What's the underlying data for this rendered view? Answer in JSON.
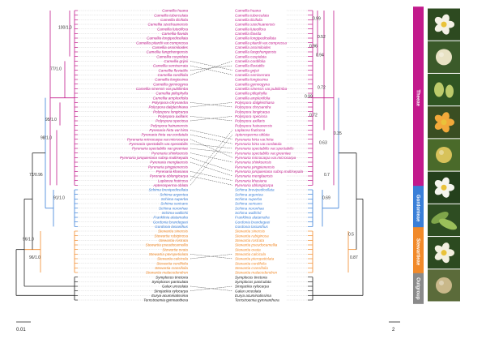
{
  "colors": {
    "Theeae": "#c21a8c",
    "Gordonieae": "#3a7fd8",
    "Stewartieae": "#f18a2a",
    "Outgroup": "#222222",
    "OutgroupBand": "#8a8a8a"
  },
  "left_tree": {
    "scale_label": "0.01",
    "taxa": [
      {
        "name": "Camellia huana",
        "clade": "Theeae"
      },
      {
        "name": "Camellia tuberculata",
        "clade": "Theeae"
      },
      {
        "name": "Camellia ilicifolia",
        "clade": "Theeae"
      },
      {
        "name": "Camellia szechuanensis",
        "clade": "Theeae"
      },
      {
        "name": "Camellia luteoflora",
        "clade": "Theeae"
      },
      {
        "name": "Camellia flavida",
        "clade": "Theeae"
      },
      {
        "name": "Camellia longipedicellata",
        "clade": "Theeae"
      },
      {
        "name": "Camellia pitardii var.compressa",
        "clade": "Theeae"
      },
      {
        "name": "Camellia assimiloides",
        "clade": "Theeae"
      },
      {
        "name": "Camellia fangchengensis",
        "clade": "Theeae"
      },
      {
        "name": "Camellia cuspidata",
        "clade": "Theeae"
      },
      {
        "name": "Camellia grijsii",
        "clade": "Theeae"
      },
      {
        "name": "Camellia semiserrata",
        "clade": "Theeae"
      },
      {
        "name": "Camellia fluviatilis",
        "clade": "Theeae"
      },
      {
        "name": "Camellia cordifolia",
        "clade": "Theeae"
      },
      {
        "name": "Camellia longissima",
        "clade": "Theeae"
      },
      {
        "name": "Camellia gymnogyna",
        "clade": "Theeae"
      },
      {
        "name": "Camellia sinensis var.pubilimba",
        "clade": "Theeae"
      },
      {
        "name": "Camellia ptilophylla",
        "clade": "Theeae"
      },
      {
        "name": "Camellia amplexifolia",
        "clade": "Theeae"
      },
      {
        "name": "Polyspora chrysandra",
        "clade": "Theeae"
      },
      {
        "name": "Polyspora dalgleishiana",
        "clade": "Theeae"
      },
      {
        "name": "Polyspora longicarpa",
        "clade": "Theeae"
      },
      {
        "name": "Polyspora axillaris",
        "clade": "Theeae"
      },
      {
        "name": "Polyspora speciosa",
        "clade": "Theeae"
      },
      {
        "name": "Polyspora hainanensis",
        "clade": "Theeae"
      },
      {
        "name": "Pyrenaria hirta var.hirta",
        "clade": "Theeae"
      },
      {
        "name": "Pyrenaria hirta var.cordatula",
        "clade": "Theeae"
      },
      {
        "name": "Pyrenaria microcarpa var.microcarpa",
        "clade": "Theeae"
      },
      {
        "name": "Pyrenaria spectabilis var.spectabilis",
        "clade": "Theeae"
      },
      {
        "name": "Pyrenaria spectabilis var.greeniae",
        "clade": "Theeae"
      },
      {
        "name": "Pyrenaria shinkoensis",
        "clade": "Theeae"
      },
      {
        "name": "Pyrenaria jonquieriana subsp.multisepala",
        "clade": "Theeae"
      },
      {
        "name": "Pyrenaria menglaensis",
        "clade": "Theeae"
      },
      {
        "name": "Pyrenaria pingpienensis",
        "clade": "Theeae"
      },
      {
        "name": "Pyrenaria khasiana",
        "clade": "Theeae"
      },
      {
        "name": "Pyrenaria oblongicarpa",
        "clade": "Theeae"
      },
      {
        "name": "Laplacea fruticosa",
        "clade": "Theeae"
      },
      {
        "name": "Apterosperma oblata",
        "clade": "Theeae"
      },
      {
        "name": "Schima brevipedicellata",
        "clade": "Gordonieae"
      },
      {
        "name": "Schima argentea",
        "clade": "Gordonieae"
      },
      {
        "name": "Schima superba",
        "clade": "Gordonieae"
      },
      {
        "name": "Schima sericans",
        "clade": "Gordonieae"
      },
      {
        "name": "Schima noronhae",
        "clade": "Gordonieae"
      },
      {
        "name": "Schima wallichii",
        "clade": "Gordonieae"
      },
      {
        "name": "Franklinia alatamaha",
        "clade": "Gordonieae"
      },
      {
        "name": "Gordonia brandegeei",
        "clade": "Gordonieae"
      },
      {
        "name": "Gordonia lasianthus",
        "clade": "Gordonieae"
      },
      {
        "name": "Stewartia sinensis",
        "clade": "Stewartieae"
      },
      {
        "name": "Stewartia rubiginosa",
        "clade": "Stewartieae"
      },
      {
        "name": "Stewartia rostrata",
        "clade": "Stewartieae"
      },
      {
        "name": "Stewartia pseudocamellia",
        "clade": "Stewartieae"
      },
      {
        "name": "Stewartia ovata",
        "clade": "Stewartieae"
      },
      {
        "name": "Stewartia pteropetiolata",
        "clade": "Stewartieae"
      },
      {
        "name": "Stewartia calcicola",
        "clade": "Stewartieae"
      },
      {
        "name": "Stewartia cordifolia",
        "clade": "Stewartieae"
      },
      {
        "name": "Stewartia crassifolia",
        "clade": "Stewartieae"
      },
      {
        "name": "Stewartia malacodendron",
        "clade": "Stewartieae"
      },
      {
        "name": "Symplocos tinctoria",
        "clade": "Outgroup"
      },
      {
        "name": "Symplocos paniculata",
        "clade": "Outgroup"
      },
      {
        "name": "Galax urceolata",
        "clade": "Outgroup"
      },
      {
        "name": "Sinojackia xylocarpa",
        "clade": "Outgroup"
      },
      {
        "name": "Eurya acuminatissima",
        "clade": "Outgroup"
      },
      {
        "name": "Ternstroemia gymnanthera",
        "clade": "Outgroup"
      }
    ],
    "support_labels": [
      "100/1.0",
      "77/1.0",
      "95/1.0",
      "98/1.0",
      "72/0.96",
      "91/1.0",
      "96/1.0",
      "96/1.0"
    ]
  },
  "right_tree": {
    "scale_label": "2",
    "taxa": [
      {
        "name": "Camellia huana",
        "clade": "Theeae"
      },
      {
        "name": "Camellia tuberculata",
        "clade": "Theeae"
      },
      {
        "name": "Camellia ilicifolia",
        "clade": "Theeae"
      },
      {
        "name": "Camellia szechuanensis",
        "clade": "Theeae"
      },
      {
        "name": "Camellia luteoflora",
        "clade": "Theeae"
      },
      {
        "name": "Camellia flavida",
        "clade": "Theeae"
      },
      {
        "name": "Camellia longipedicellata",
        "clade": "Theeae"
      },
      {
        "name": "Camellia pitardii var.compressa",
        "clade": "Theeae"
      },
      {
        "name": "Camellia assimiloides",
        "clade": "Theeae"
      },
      {
        "name": "Camellia fangchengensis",
        "clade": "Theeae"
      },
      {
        "name": "Camellia cuspidata",
        "clade": "Theeae"
      },
      {
        "name": "Camellia cordifolia",
        "clade": "Theeae"
      },
      {
        "name": "Camellia fluviatilis",
        "clade": "Theeae"
      },
      {
        "name": "Camellia grijsii",
        "clade": "Theeae"
      },
      {
        "name": "Camellia semiserrata",
        "clade": "Theeae"
      },
      {
        "name": "Camellia longissima",
        "clade": "Theeae"
      },
      {
        "name": "Camellia gymnogyna",
        "clade": "Theeae"
      },
      {
        "name": "Camellia sinensis var.pubilimba",
        "clade": "Theeae"
      },
      {
        "name": "Camellia ptilophylla",
        "clade": "Theeae"
      },
      {
        "name": "Camellia amplexifolia",
        "clade": "Theeae"
      },
      {
        "name": "Polyspora dalgleishiana",
        "clade": "Theeae"
      },
      {
        "name": "Polyspora chrysandra",
        "clade": "Theeae"
      },
      {
        "name": "Polyspora longicarpa",
        "clade": "Theeae"
      },
      {
        "name": "Polyspora speciosa",
        "clade": "Theeae"
      },
      {
        "name": "Polyspora axillaris",
        "clade": "Theeae"
      },
      {
        "name": "Polyspora hainanensis",
        "clade": "Theeae"
      },
      {
        "name": "Laplacea fruticosa",
        "clade": "Theeae"
      },
      {
        "name": "Apterosperma oblata",
        "clade": "Theeae"
      },
      {
        "name": "Pyrenaria hirta var.hirta",
        "clade": "Theeae"
      },
      {
        "name": "Pyrenaria hirta var.cordatula",
        "clade": "Theeae"
      },
      {
        "name": "Pyrenaria spectabilis var.spectabilis",
        "clade": "Theeae"
      },
      {
        "name": "Pyrenaria spectabilis var.greeniae",
        "clade": "Theeae"
      },
      {
        "name": "Pyrenaria microcarpa var.microcarpa",
        "clade": "Theeae"
      },
      {
        "name": "Pyrenaria shinkoensis",
        "clade": "Theeae"
      },
      {
        "name": "Pyrenaria pingpienensis",
        "clade": "Theeae"
      },
      {
        "name": "Pyrenaria jonquieriana subsp.multisepala",
        "clade": "Theeae"
      },
      {
        "name": "Pyrenaria menglaensis",
        "clade": "Theeae"
      },
      {
        "name": "Pyrenaria khasiana",
        "clade": "Theeae"
      },
      {
        "name": "Pyrenaria oblongicarpa",
        "clade": "Theeae"
      },
      {
        "name": "Schima brevipedicellata",
        "clade": "Gordonieae"
      },
      {
        "name": "Schima argentea",
        "clade": "Gordonieae"
      },
      {
        "name": "Schima superba",
        "clade": "Gordonieae"
      },
      {
        "name": "Schima sericans",
        "clade": "Gordonieae"
      },
      {
        "name": "Schima noronhae",
        "clade": "Gordonieae"
      },
      {
        "name": "Schima wallichii",
        "clade": "Gordonieae"
      },
      {
        "name": "Franklinia alatamaha",
        "clade": "Gordonieae"
      },
      {
        "name": "Gordonia brandegeei",
        "clade": "Gordonieae"
      },
      {
        "name": "Gordonia lasianthus",
        "clade": "Gordonieae"
      },
      {
        "name": "Stewartia sinensis",
        "clade": "Stewartieae"
      },
      {
        "name": "Stewartia rubiginosa",
        "clade": "Stewartieae"
      },
      {
        "name": "Stewartia rostrata",
        "clade": "Stewartieae"
      },
      {
        "name": "Stewartia pseudocamellia",
        "clade": "Stewartieae"
      },
      {
        "name": "Stewartia ovata",
        "clade": "Stewartieae"
      },
      {
        "name": "Stewartia calcicola",
        "clade": "Stewartieae"
      },
      {
        "name": "Stewartia pteropetiolata",
        "clade": "Stewartieae"
      },
      {
        "name": "Stewartia cordifolia",
        "clade": "Stewartieae"
      },
      {
        "name": "Stewartia crassifolia",
        "clade": "Stewartieae"
      },
      {
        "name": "Stewartia malacodendron",
        "clade": "Stewartieae"
      },
      {
        "name": "Symplocos tinctoria",
        "clade": "Outgroup"
      },
      {
        "name": "Symplocos paniculata",
        "clade": "Outgroup"
      },
      {
        "name": "Sinojackia xylocarpa",
        "clade": "Outgroup"
      },
      {
        "name": "Galax urceolata",
        "clade": "Outgroup"
      },
      {
        "name": "Eurya acuminatissima",
        "clade": "Outgroup"
      },
      {
        "name": "Ternstroemia gymnanthera",
        "clade": "Outgroup"
      }
    ],
    "support_labels": [
      "0.99",
      "0.52",
      "0.96",
      "0.94",
      "0.72",
      "0.99",
      "0.72",
      "0.35",
      "0.63",
      "0.7",
      "0.69",
      "0.5",
      "0.87"
    ]
  },
  "bands": [
    {
      "label": "Theeae",
      "clade": "Theeae"
    },
    {
      "label": "Gordonieae",
      "clade": "Gordonieae"
    },
    {
      "label": "Stewartieae",
      "clade": "Stewartieae"
    },
    {
      "label": "Outgroup",
      "clade": "Outgroup"
    }
  ],
  "photos": [
    {
      "name": "Camellia flower photo"
    },
    {
      "name": "Camellia fruit photo"
    },
    {
      "name": "Polyspora bud photo"
    },
    {
      "name": "Pyrenaria flower photo"
    },
    {
      "name": "Pyrenaria fruit photo"
    },
    {
      "name": "Schima flower photo"
    },
    {
      "name": "Gordonia leaves photo"
    },
    {
      "name": "Stewartia flower photo"
    },
    {
      "name": "Stewartia fruit photo"
    }
  ]
}
